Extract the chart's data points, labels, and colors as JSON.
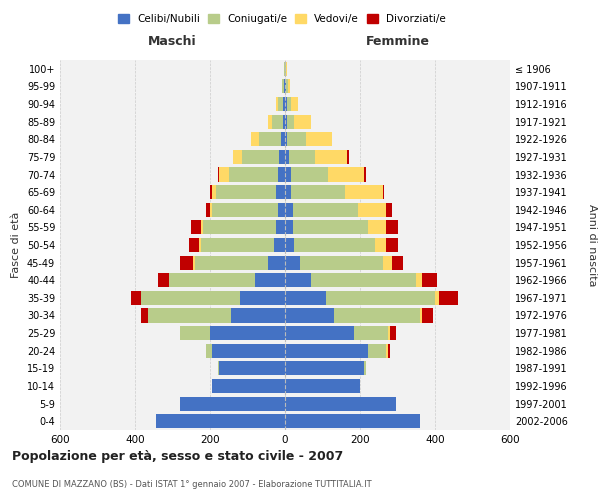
{
  "age_groups": [
    "0-4",
    "5-9",
    "10-14",
    "15-19",
    "20-24",
    "25-29",
    "30-34",
    "35-39",
    "40-44",
    "45-49",
    "50-54",
    "55-59",
    "60-64",
    "65-69",
    "70-74",
    "75-79",
    "80-84",
    "85-89",
    "90-94",
    "95-99",
    "100+"
  ],
  "birth_years": [
    "2002-2006",
    "1997-2001",
    "1992-1996",
    "1987-1991",
    "1982-1986",
    "1977-1981",
    "1972-1976",
    "1967-1971",
    "1962-1966",
    "1957-1961",
    "1952-1956",
    "1947-1951",
    "1942-1946",
    "1937-1941",
    "1932-1936",
    "1927-1931",
    "1922-1926",
    "1917-1921",
    "1912-1916",
    "1907-1911",
    "≤ 1906"
  ],
  "male_celibi": [
    345,
    280,
    195,
    175,
    195,
    200,
    145,
    120,
    80,
    45,
    30,
    25,
    20,
    25,
    20,
    15,
    10,
    5,
    5,
    2,
    0
  ],
  "male_coniugati": [
    0,
    0,
    0,
    5,
    15,
    80,
    220,
    265,
    230,
    195,
    195,
    195,
    175,
    160,
    130,
    100,
    60,
    30,
    15,
    5,
    2
  ],
  "male_vedovi": [
    0,
    0,
    0,
    0,
    0,
    0,
    0,
    0,
    0,
    5,
    5,
    5,
    5,
    10,
    25,
    25,
    20,
    10,
    5,
    2,
    0
  ],
  "male_divorziati": [
    0,
    0,
    0,
    0,
    0,
    0,
    20,
    25,
    30,
    35,
    25,
    25,
    10,
    5,
    5,
    0,
    0,
    0,
    0,
    0,
    0
  ],
  "fem_nubili": [
    360,
    295,
    200,
    210,
    220,
    185,
    130,
    110,
    70,
    40,
    25,
    20,
    20,
    15,
    15,
    10,
    5,
    5,
    5,
    2,
    0
  ],
  "fem_coniugate": [
    0,
    0,
    0,
    5,
    50,
    90,
    230,
    290,
    280,
    220,
    215,
    200,
    175,
    145,
    100,
    70,
    50,
    20,
    10,
    5,
    2
  ],
  "fem_vedove": [
    0,
    0,
    0,
    0,
    5,
    5,
    5,
    10,
    15,
    25,
    30,
    50,
    75,
    100,
    95,
    85,
    70,
    45,
    20,
    5,
    2
  ],
  "fem_divorziate": [
    0,
    0,
    0,
    0,
    5,
    15,
    30,
    50,
    40,
    30,
    30,
    30,
    15,
    5,
    5,
    5,
    0,
    0,
    0,
    0,
    0
  ],
  "color_celibi": "#4472C4",
  "color_coniugati": "#B8CC8A",
  "color_vedovi": "#FFD966",
  "color_divorziati": "#C00000",
  "bg_color": "#F2F2F2",
  "grid_color": "#CCCCCC",
  "title": "Popolazione per età, sesso e stato civile - 2007",
  "subtitle": "COMUNE DI MAZZANO (BS) - Dati ISTAT 1° gennaio 2007 - Elaborazione TUTTITALIA.IT",
  "xlabel_left": "Maschi",
  "xlabel_right": "Femmine",
  "ylabel_left": "Fasce di età",
  "ylabel_right": "Anni di nascita",
  "xlim": 600,
  "legend_labels": [
    "Celibi/Nubili",
    "Coniugati/e",
    "Vedovi/e",
    "Divorziati/e"
  ]
}
